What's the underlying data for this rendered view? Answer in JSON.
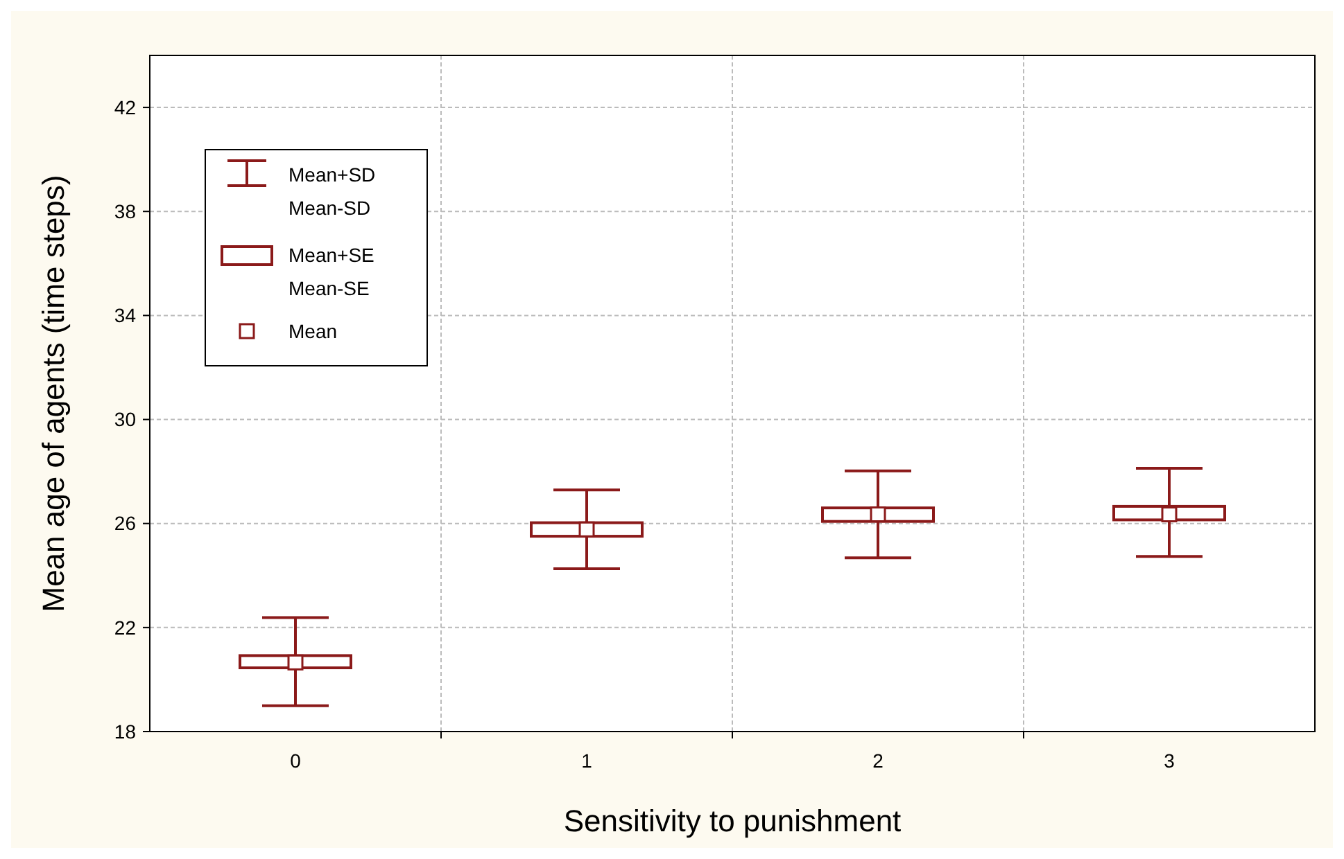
{
  "chart_data": {
    "type": "box",
    "xlabel": "Sensitivity to punishment",
    "ylabel": "Mean age of agents (time steps)",
    "categories": [
      "0",
      "1",
      "2",
      "3"
    ],
    "boxes": [
      {
        "low": 18.99,
        "q1": 20.45,
        "median": 20.66,
        "q3": 20.92,
        "high": 22.38
      },
      {
        "low": 24.26,
        "q1": 25.51,
        "median": 25.77,
        "q3": 26.03,
        "high": 27.29
      },
      {
        "low": 24.68,
        "q1": 26.08,
        "median": 26.35,
        "q3": 26.6,
        "high": 28.02
      },
      {
        "low": 24.73,
        "q1": 26.14,
        "median": 26.35,
        "q3": 26.66,
        "high": 28.12
      }
    ],
    "color": "#8b1a1a",
    "ylim": [
      18,
      44
    ],
    "yticks": [
      18,
      22,
      26,
      30,
      34,
      38,
      42
    ],
    "grid": true,
    "marker": "square",
    "annotations": [
      "Mean+SD",
      "Mean-SD",
      "Mean+SE",
      "Mean-SE",
      "Mean"
    ]
  }
}
